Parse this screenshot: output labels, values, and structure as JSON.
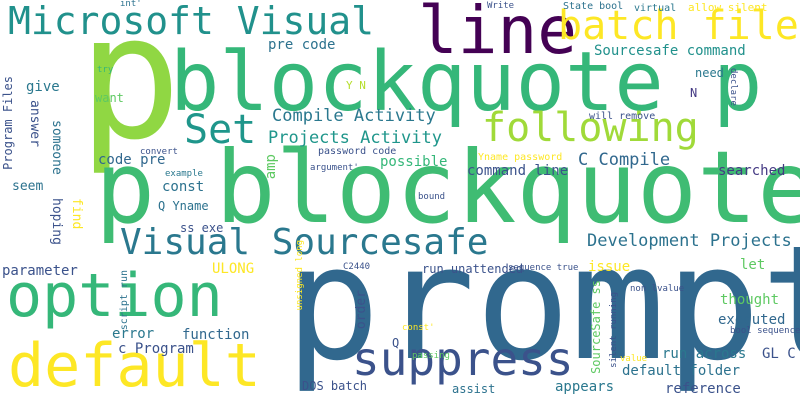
{
  "words": [
    "prompt",
    "p",
    "blockquote p",
    "p blockquote",
    "option",
    "default",
    "suppress",
    "Microsoft Visual",
    "line",
    "batch file",
    "following",
    "Set",
    "Visual Sourcesafe",
    "Compile Activity",
    "Projects Activity",
    "C Compile",
    "Development Projects",
    "Sourcesafe command",
    "pre code",
    "code pre",
    "command line",
    "searched",
    "possible",
    "const",
    "amp",
    "Q Yname",
    "ss exe",
    "parameter",
    "ULONG",
    "error",
    "function",
    "c Program",
    "DOS batch",
    "assist",
    "appears",
    "reference",
    "default folder",
    "executed",
    "run across",
    "GL C",
    "thought",
    "let",
    "issue",
    "run unattended",
    "give",
    "answer",
    "someone",
    "hoping",
    "find",
    "seem",
    "Program Files",
    "want",
    "need",
    "N",
    "Y N",
    "will remove",
    "password code",
    "Yname password",
    "argument'",
    "State bool",
    "virtual",
    "allow silent",
    "declare",
    "Write",
    "int'",
    "try",
    "convert",
    "example",
    "script run",
    "unsigned long",
    "bound",
    "C2440",
    "sequence true",
    "non lvalue",
    "const'",
    "passing",
    "order",
    "Q",
    "silent running",
    "SourceSafe ss",
    "bool sequence",
    "value"
  ]
}
